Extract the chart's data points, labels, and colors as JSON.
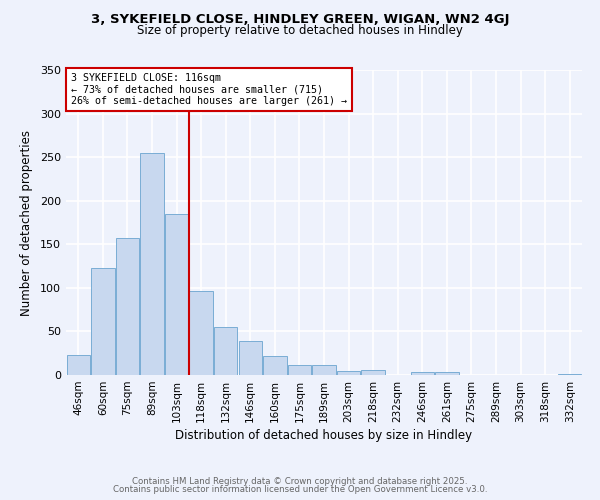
{
  "title1": "3, SYKEFIELD CLOSE, HINDLEY GREEN, WIGAN, WN2 4GJ",
  "title2": "Size of property relative to detached houses in Hindley",
  "xlabel": "Distribution of detached houses by size in Hindley",
  "ylabel": "Number of detached properties",
  "bar_labels": [
    "46sqm",
    "60sqm",
    "75sqm",
    "89sqm",
    "103sqm",
    "118sqm",
    "132sqm",
    "146sqm",
    "160sqm",
    "175sqm",
    "189sqm",
    "203sqm",
    "218sqm",
    "232sqm",
    "246sqm",
    "261sqm",
    "275sqm",
    "289sqm",
    "303sqm",
    "318sqm",
    "332sqm"
  ],
  "bar_values": [
    23,
    123,
    157,
    255,
    185,
    96,
    55,
    39,
    22,
    11,
    12,
    5,
    6,
    0,
    3,
    4,
    0,
    0,
    0,
    0,
    1
  ],
  "bar_color": "#c8d8ef",
  "bar_edge_color": "#7aadd4",
  "background_color": "#eef2fc",
  "grid_color": "#ffffff",
  "vline_color": "#cc0000",
  "vline_index": 4.5,
  "annotation_line1": "3 SYKEFIELD CLOSE: 116sqm",
  "annotation_line2": "← 73% of detached houses are smaller (715)",
  "annotation_line3": "26% of semi-detached houses are larger (261) →",
  "annotation_box_facecolor": "#ffffff",
  "annotation_box_edgecolor": "#cc0000",
  "ylim": [
    0,
    350
  ],
  "yticks": [
    0,
    50,
    100,
    150,
    200,
    250,
    300,
    350
  ],
  "footer1": "Contains HM Land Registry data © Crown copyright and database right 2025.",
  "footer2": "Contains public sector information licensed under the Open Government Licence v3.0.",
  "footer_color": "#666666"
}
